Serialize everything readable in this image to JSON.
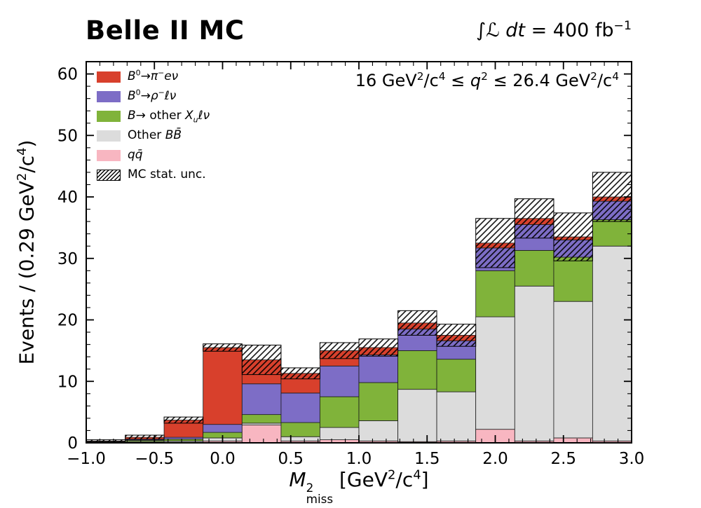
{
  "header": {
    "title": "Belle II MC",
    "luminosity_parts": [
      {
        "t": "∫"
      },
      {
        "t": "ℒ",
        "i": 1
      },
      {
        "t": " "
      },
      {
        "t": "dt",
        "i": 1
      },
      {
        "t": " = 400 fb"
      },
      {
        "t": "−1",
        "sup": 1
      }
    ]
  },
  "annotation": {
    "parts": [
      {
        "t": "16 GeV"
      },
      {
        "t": "2",
        "sup": 1
      },
      {
        "t": "/c"
      },
      {
        "t": "4",
        "sup": 1
      },
      {
        "t": " ≤ "
      },
      {
        "t": "q",
        "i": 1
      },
      {
        "t": "2",
        "sup": 1
      },
      {
        "t": " ≤ 26.4 GeV"
      },
      {
        "t": "2",
        "sup": 1
      },
      {
        "t": "/c"
      },
      {
        "t": "4",
        "sup": 1
      }
    ]
  },
  "axes": {
    "x": {
      "min": -1.0,
      "max": 3.0,
      "minor_step": 0.1,
      "label_parts": [
        {
          "t": "M",
          "i": 1
        },
        {
          "stack": {
            "sup": "2",
            "sub": "miss"
          }
        },
        {
          "t": " [GeV"
        },
        {
          "t": "2",
          "sup": 1
        },
        {
          "t": "/c"
        },
        {
          "t": "4",
          "sup": 1
        },
        {
          "t": "]"
        }
      ],
      "ticks": [
        {
          "v": -1.0,
          "label": "−1.0"
        },
        {
          "v": -0.5,
          "label": "−0.5"
        },
        {
          "v": 0.0,
          "label": "0.0"
        },
        {
          "v": 0.5,
          "label": "0.5"
        },
        {
          "v": 1.0,
          "label": "1.0"
        },
        {
          "v": 1.5,
          "label": "1.5"
        },
        {
          "v": 2.0,
          "label": "2.0"
        },
        {
          "v": 2.5,
          "label": "2.5"
        },
        {
          "v": 3.0,
          "label": "3.0"
        }
      ]
    },
    "y": {
      "min": 0,
      "max": 62,
      "minor_step": 2,
      "label_parts": [
        {
          "t": "Events / (0.29 GeV"
        },
        {
          "t": "2",
          "sup": 1
        },
        {
          "t": "/c"
        },
        {
          "t": "4",
          "sup": 1
        },
        {
          "t": ")"
        }
      ],
      "ticks": [
        {
          "v": 0,
          "label": "0"
        },
        {
          "v": 10,
          "label": "10"
        },
        {
          "v": 20,
          "label": "20"
        },
        {
          "v": 30,
          "label": "30"
        },
        {
          "v": 40,
          "label": "40"
        },
        {
          "v": 50,
          "label": "50"
        },
        {
          "v": 60,
          "label": "60"
        }
      ]
    }
  },
  "legend": {
    "items": [
      {
        "key": "pienu",
        "swatch_color": "#d8402c",
        "label_parts": [
          {
            "t": "B",
            "i": 1
          },
          {
            "t": "0",
            "sup": 1
          },
          {
            "t": "→"
          },
          {
            "t": "π",
            "i": 1
          },
          {
            "t": "−",
            "sup": 1
          },
          {
            "t": "eν",
            "i": 1
          }
        ]
      },
      {
        "key": "rholnu",
        "swatch_color": "#7d6dc6",
        "label_parts": [
          {
            "t": "B",
            "i": 1
          },
          {
            "t": "0",
            "sup": 1
          },
          {
            "t": "→"
          },
          {
            "t": "ρ",
            "i": 1
          },
          {
            "t": "−",
            "sup": 1
          },
          {
            "t": "ℓν",
            "i": 1
          }
        ]
      },
      {
        "key": "xulnu",
        "swatch_color": "#80b33a",
        "label_parts": [
          {
            "t": "B",
            "i": 1
          },
          {
            "t": "→ other "
          },
          {
            "t": "X",
            "i": 1
          },
          {
            "t": "u",
            "sub": 1,
            "i": 1
          },
          {
            "t": "ℓν",
            "i": 1
          }
        ]
      },
      {
        "key": "otherbb",
        "swatch_color": "#dcdcdc",
        "label_parts": [
          {
            "t": "Other "
          },
          {
            "t": "BB̄",
            "i": 1
          }
        ]
      },
      {
        "key": "qqbar",
        "swatch_color": "#f8b6c1",
        "label_parts": [
          {
            "t": "qq̄",
            "i": 1
          }
        ]
      },
      {
        "key": "mcstat",
        "hatch": true,
        "label_parts": [
          {
            "t": "MC stat. unc."
          }
        ]
      }
    ]
  },
  "chart_data": {
    "type": "stacked_histogram",
    "title": "Belle II MC",
    "subtitle": "16 GeV²/c⁴ ≤ q² ≤ 26.4 GeV²/c⁴",
    "luminosity": "∫ℒ dt = 400 fb⁻¹",
    "xlabel": "M²_miss [GeV²/c⁴]",
    "ylabel": "Events / (0.29 GeV²/c⁴)",
    "xlim": [
      -1.0,
      3.0
    ],
    "ylim": [
      0,
      62
    ],
    "grid": false,
    "legend_position": "upper left",
    "stack_order": "bottom-to-top",
    "bin_edges": [
      -1.0,
      -0.714,
      -0.429,
      -0.143,
      0.143,
      0.429,
      0.714,
      1.0,
      1.286,
      1.571,
      1.857,
      2.143,
      2.429,
      2.714,
      3.0
    ],
    "series": [
      {
        "key": "qqbar",
        "name": "qq̄",
        "color": "#f8b6c1",
        "values": [
          0.0,
          0.05,
          0.1,
          0.3,
          2.9,
          0.3,
          0.5,
          0.3,
          0.2,
          0.3,
          2.2,
          0.3,
          0.8,
          0.3
        ]
      },
      {
        "key": "otherbb",
        "name": "Other BB̄",
        "color": "#dcdcdc",
        "values": [
          0.1,
          0.15,
          0.2,
          0.5,
          0.3,
          0.7,
          2.0,
          3.3,
          8.5,
          8.0,
          18.3,
          25.2,
          22.2,
          31.7
        ]
      },
      {
        "key": "xulnu",
        "name": "B→ other Xuℓν",
        "color": "#80b33a",
        "values": [
          0.05,
          0.2,
          0.3,
          0.9,
          1.4,
          2.3,
          5.0,
          6.2,
          6.3,
          5.3,
          7.5,
          5.8,
          7.2,
          4.3
        ]
      },
      {
        "key": "rholnu",
        "name": "B⁰→ρ⁻ℓν",
        "color": "#7d6dc6",
        "values": [
          0.05,
          0.2,
          0.3,
          1.3,
          5.0,
          4.8,
          5.0,
          4.5,
          3.5,
          3.0,
          3.7,
          4.2,
          2.8,
          3.0
        ]
      },
      {
        "key": "pienu",
        "name": "B⁰→π⁻eν",
        "color": "#d8402c",
        "values": [
          0.1,
          0.3,
          2.8,
          12.5,
          3.9,
          3.2,
          2.5,
          1.2,
          1.0,
          0.9,
          0.8,
          1.0,
          0.5,
          0.7
        ]
      }
    ],
    "stat_unc": [
      0.2,
      0.35,
      0.5,
      0.6,
      2.4,
      0.9,
      1.3,
      1.4,
      2.0,
      1.8,
      4.0,
      3.2,
      3.9,
      4.0
    ]
  }
}
